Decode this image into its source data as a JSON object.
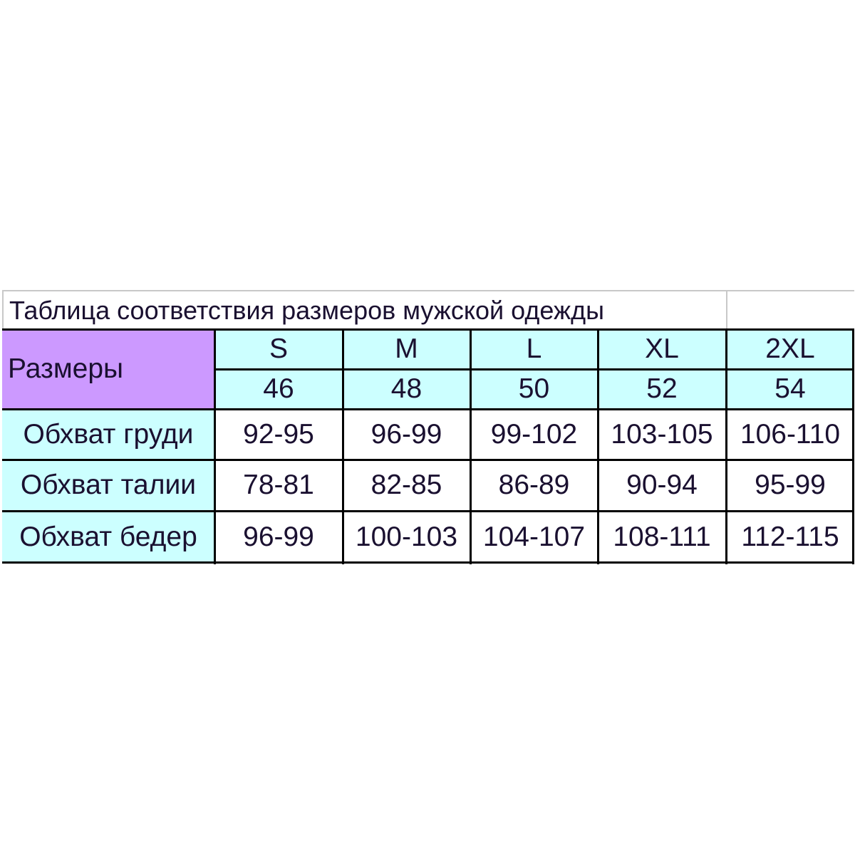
{
  "title": "Таблица соответствия размеров мужской одежды",
  "header_label": "Размеры",
  "colors": {
    "header_label_bg": "#cc99ff",
    "header_bg": "#ccffff",
    "row_label_bg": "#ccffff",
    "cell_bg": "#ffffff"
  },
  "sizes": [
    {
      "letter": "S",
      "number": "46"
    },
    {
      "letter": "M",
      "number": "48"
    },
    {
      "letter": "L",
      "number": "50"
    },
    {
      "letter": "XL",
      "number": "52"
    },
    {
      "letter": "2XL",
      "number": "54"
    }
  ],
  "rows": [
    {
      "label": "Обхват груди",
      "values": [
        "92-95",
        "96-99",
        "99-102",
        "103-105",
        "106-110"
      ]
    },
    {
      "label": "Обхват талии",
      "values": [
        "78-81",
        "82-85",
        "86-89",
        "90-94",
        "95-99"
      ]
    },
    {
      "label": "Обхват бедер",
      "values": [
        "96-99",
        "100-103",
        "104-107",
        "108-111",
        "112-115"
      ]
    }
  ]
}
